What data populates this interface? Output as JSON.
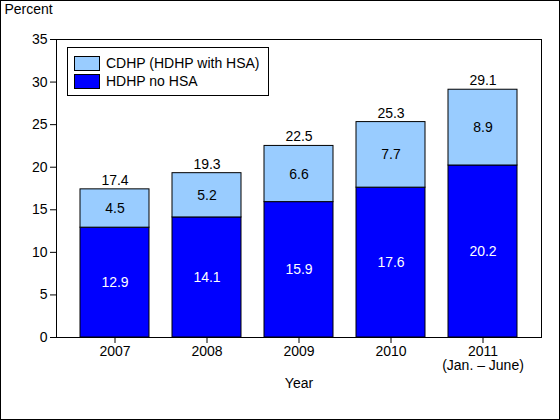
{
  "chart_data": {
    "type": "bar",
    "stacked": true,
    "data_labels": true,
    "legend": "top-left",
    "grid": false,
    "categories": [
      "2007",
      "2008",
      "2009",
      "2010",
      "2011\n(Jan. – June)"
    ],
    "series": [
      {
        "name": "HDHP no HSA",
        "color": "#0000ff",
        "values": [
          12.9,
          14.1,
          15.9,
          17.6,
          20.2
        ]
      },
      {
        "name": "CDHP (HDHP with HSA)",
        "color": "#99ccff",
        "values": [
          4.5,
          5.2,
          6.6,
          7.7,
          8.9
        ]
      }
    ],
    "totals": [
      17.4,
      19.3,
      22.5,
      25.3,
      29.1
    ],
    "x_label": "Year",
    "y_label": "Percent",
    "ylim": [
      0,
      35
    ],
    "yticks": [
      0,
      5,
      10,
      15,
      20,
      25,
      30,
      35
    ]
  }
}
